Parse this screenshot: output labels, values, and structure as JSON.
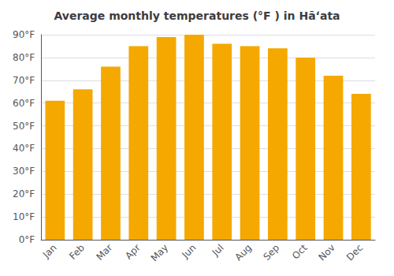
{
  "chart_data": {
    "type": "bar",
    "title": "Average monthly temperatures (°F ) in Hāʻata",
    "categories": [
      "Jan",
      "Feb",
      "Mar",
      "Apr",
      "May",
      "Jun",
      "Jul",
      "Aug",
      "Sep",
      "Oct",
      "Nov",
      "Dec"
    ],
    "values": [
      61,
      66,
      76,
      85,
      89,
      90,
      86,
      85,
      84,
      80,
      72,
      64
    ],
    "color": "#F5A800",
    "ylim": [
      0,
      90
    ],
    "yticks": [
      {
        "value": 0,
        "label": "0°F"
      },
      {
        "value": 10,
        "label": "10°F"
      },
      {
        "value": 20,
        "label": "20°F"
      },
      {
        "value": 30,
        "label": "30°F"
      },
      {
        "value": 40,
        "label": "40°F"
      },
      {
        "value": 50,
        "label": "50°F"
      },
      {
        "value": 60,
        "label": "60°F"
      },
      {
        "value": 70,
        "label": "70°F"
      },
      {
        "value": 80,
        "label": "80°F"
      },
      {
        "value": 90,
        "label": "90°F"
      }
    ],
    "grid": true
  }
}
